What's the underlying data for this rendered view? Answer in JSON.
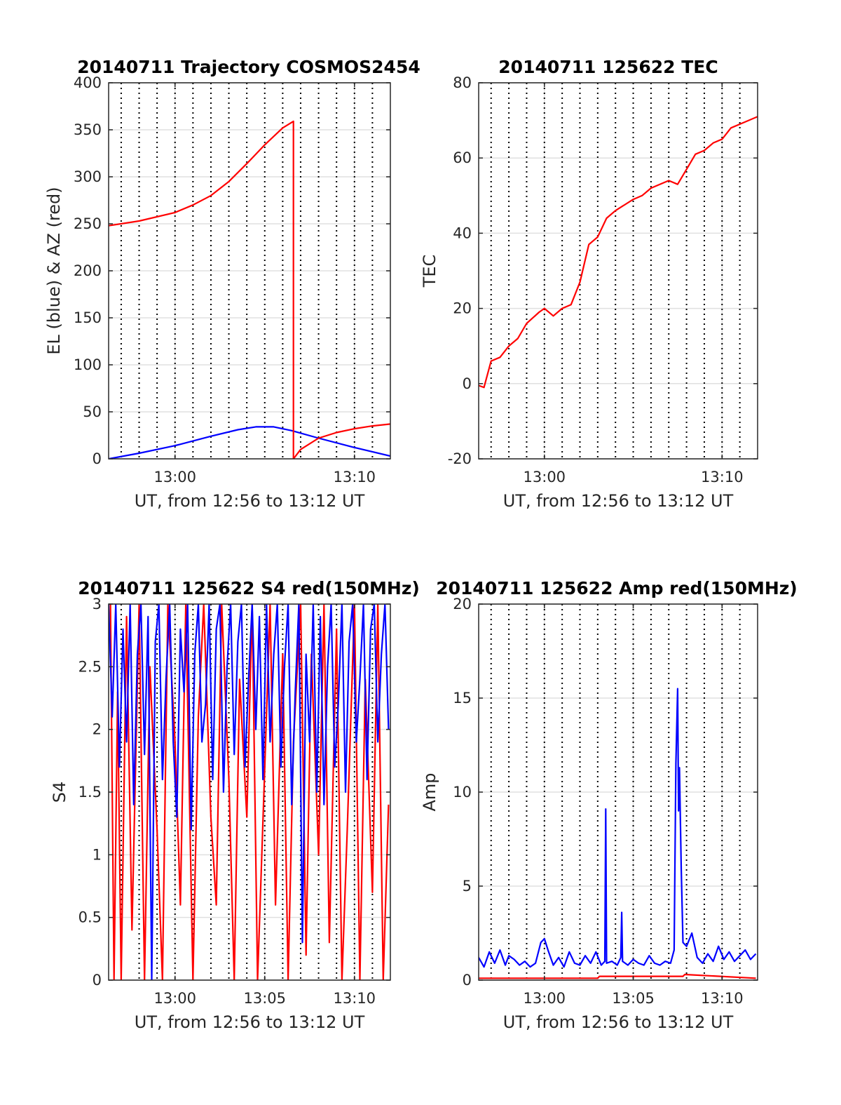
{
  "figure": {
    "background": "#ffffff"
  },
  "chart_data": [
    {
      "type": "line",
      "title": "20140711 Trajectory COSMOS2454",
      "xlabel": "UT, from 12:56 to 13:12 UT",
      "ylabel": "EL (blue) & AZ (red)",
      "xlim_minutes": [
        776.3,
        792.0
      ],
      "xticks": [
        {
          "label": "13:00",
          "value": 780
        },
        {
          "label": "13:10",
          "value": 790
        }
      ],
      "ylim": [
        0,
        400
      ],
      "yticks": [
        "0",
        "50",
        "100",
        "150",
        "200",
        "250",
        "300",
        "350",
        "400"
      ],
      "grid": true,
      "vertical_dotted_lines_minutes": [
        777.0,
        778.0,
        779.0,
        780.0,
        781.0,
        782.0,
        783.0,
        784.0,
        785.0,
        786.0,
        787.0,
        788.0,
        789.0,
        790.0,
        791.0
      ],
      "series": [
        {
          "color": "#0000ff",
          "x": [
            776.3,
            778.0,
            780.0,
            782.0,
            783.5,
            784.5,
            785.5,
            786.5,
            788.0,
            790.0,
            792.0
          ],
          "y": [
            0,
            6,
            14,
            24,
            31,
            34,
            34,
            30,
            22,
            12,
            3
          ]
        },
        {
          "color": "#ff0000",
          "x": [
            776.3,
            778.0,
            780.0,
            781.0,
            782.0,
            783.0,
            784.0,
            785.0,
            786.0,
            786.6,
            786.6,
            787.0,
            788.0,
            789.0,
            790.0,
            791.0,
            792.0
          ],
          "y": [
            248,
            253,
            262,
            270,
            280,
            295,
            314,
            334,
            352,
            359,
            0,
            10,
            22,
            28,
            32,
            35,
            37
          ]
        }
      ]
    },
    {
      "type": "line",
      "title": "20140711 125622 TEC",
      "xlabel": "UT, from 12:56 to 13:12 UT",
      "ylabel": "TEC",
      "xlim_minutes": [
        776.3,
        792.0
      ],
      "xticks": [
        {
          "label": "13:00",
          "value": 780
        },
        {
          "label": "13:10",
          "value": 790
        }
      ],
      "ylim": [
        -20,
        80
      ],
      "yticks": [
        "-20",
        "0",
        "20",
        "40",
        "60",
        "80"
      ],
      "grid": true,
      "vertical_dotted_lines_minutes": [
        777.0,
        778.0,
        779.0,
        780.0,
        781.0,
        782.0,
        783.0,
        784.0,
        785.0,
        786.0,
        787.0,
        788.0,
        789.0,
        790.0,
        791.0
      ],
      "series": [
        {
          "color": "#ff0000",
          "x": [
            776.3,
            776.6,
            777.0,
            777.5,
            778.0,
            778.5,
            779.0,
            779.7,
            780.0,
            780.5,
            781.0,
            781.5,
            782.0,
            782.5,
            783.0,
            783.5,
            784.0,
            785.0,
            785.5,
            786.0,
            787.0,
            787.5,
            788.0,
            788.5,
            789.0,
            789.5,
            790.0,
            790.5,
            791.0,
            792.0
          ],
          "y": [
            -0.5,
            -1,
            6,
            7,
            10,
            12,
            16,
            19,
            20,
            18,
            20,
            21,
            27,
            37,
            39,
            44,
            46,
            49,
            50,
            52,
            54,
            53,
            57,
            61,
            62,
            64,
            65,
            68,
            69,
            71
          ]
        }
      ]
    },
    {
      "type": "line",
      "title": "20140711 125622 S4 red(150MHz)",
      "xlabel": "UT, from 12:56 to 13:12 UT",
      "ylabel": "S4",
      "xlim_minutes": [
        776.3,
        792.0
      ],
      "xticks": [
        {
          "label": "13:00",
          "value": 780
        },
        {
          "label": "13:05",
          "value": 785
        },
        {
          "label": "13:10",
          "value": 790
        }
      ],
      "ylim": [
        0,
        3
      ],
      "yticks": [
        "0",
        "0.5",
        "1",
        "1.5",
        "2",
        "2.5",
        "3"
      ],
      "grid": true,
      "vertical_dotted_lines_minutes": [
        777.0,
        778.0,
        779.0,
        780.0,
        781.0,
        782.0,
        783.0,
        784.0,
        785.0,
        786.0,
        787.0,
        788.0,
        789.0,
        790.0,
        791.0
      ],
      "series": [
        {
          "color": "#ff0000",
          "x": [
            776.4,
            776.6,
            776.8,
            777.0,
            777.3,
            777.6,
            778.0,
            778.3,
            778.6,
            779.0,
            779.3,
            779.6,
            780.0,
            780.3,
            780.6,
            781.0,
            781.3,
            781.6,
            782.0,
            782.3,
            782.6,
            783.0,
            783.3,
            783.6,
            784.0,
            784.3,
            784.6,
            785.0,
            785.3,
            785.6,
            786.0,
            786.3,
            786.6,
            787.0,
            787.3,
            787.6,
            788.0,
            788.3,
            788.6,
            789.0,
            789.3,
            789.6,
            790.0,
            790.3,
            790.6,
            791.0,
            791.3,
            791.6,
            791.9
          ],
          "y": [
            3,
            0,
            2.3,
            0,
            2.9,
            0.4,
            3,
            0,
            2.5,
            1.2,
            0,
            3,
            1.9,
            0.6,
            3,
            0,
            2.1,
            3,
            1.3,
            0.6,
            3,
            1.6,
            0,
            2.4,
            1.3,
            3,
            0,
            1.7,
            3,
            0.6,
            2.6,
            0,
            1.9,
            3,
            0.2,
            2.6,
            1.0,
            3,
            0.3,
            2.8,
            0,
            1.2,
            3,
            0,
            2.4,
            0.7,
            3,
            0,
            1.4
          ]
        },
        {
          "color": "#0000ff",
          "x": [
            776.3,
            776.5,
            776.7,
            776.9,
            777.1,
            777.3,
            777.5,
            777.7,
            777.9,
            778.1,
            778.3,
            778.5,
            778.7,
            778.9,
            779.1,
            779.3,
            779.5,
            779.7,
            779.9,
            780.1,
            780.3,
            780.5,
            780.7,
            780.9,
            781.1,
            781.3,
            781.5,
            781.7,
            781.9,
            782.1,
            782.3,
            782.5,
            782.7,
            782.9,
            783.1,
            783.3,
            783.5,
            783.7,
            783.9,
            784.1,
            784.3,
            784.5,
            784.7,
            784.9,
            785.1,
            785.3,
            785.5,
            785.7,
            785.9,
            786.1,
            786.3,
            786.5,
            786.7,
            786.9,
            787.1,
            787.3,
            787.5,
            787.7,
            787.9,
            788.1,
            788.3,
            788.5,
            788.7,
            788.9,
            789.1,
            789.3,
            789.5,
            789.7,
            789.9,
            790.1,
            790.3,
            790.5,
            790.7,
            790.9,
            791.1,
            791.3,
            791.5,
            791.7,
            791.9
          ],
          "y": [
            3,
            2.1,
            3,
            1.7,
            2.8,
            1.9,
            3,
            1.4,
            2.6,
            3,
            1.8,
            2.9,
            0,
            2.7,
            3,
            1.6,
            2.4,
            3,
            1.9,
            1.3,
            2.8,
            2.3,
            3,
            1.2,
            2.6,
            3,
            1.9,
            2.2,
            3,
            1.6,
            2.8,
            3,
            1.5,
            2.5,
            3,
            1.8,
            2.7,
            3,
            1.7,
            2.4,
            3,
            2.0,
            2.9,
            1.6,
            3,
            1.9,
            2.6,
            3,
            1.7,
            2.5,
            3,
            1.4,
            2.3,
            3,
            0.3,
            2.6,
            1.9,
            3,
            1.5,
            2.9,
            1.4,
            2.5,
            3,
            1.7,
            2.2,
            3,
            1.5,
            2.7,
            3,
            1.9,
            2.4,
            3,
            1.6,
            2.8,
            3,
            1.9,
            2.6,
            3,
            2.0
          ]
        }
      ]
    },
    {
      "type": "line",
      "title": "20140711 125622 Amp red(150MHz)",
      "xlabel": "UT, from 12:56 to 13:12 UT",
      "ylabel": "Amp",
      "xlim_minutes": [
        776.3,
        792.0
      ],
      "xticks": [
        {
          "label": "13:00",
          "value": 780
        },
        {
          "label": "13:05",
          "value": 785
        },
        {
          "label": "13:10",
          "value": 790
        }
      ],
      "ylim": [
        0,
        20
      ],
      "yticks": [
        "0",
        "5",
        "10",
        "15",
        "20"
      ],
      "grid": true,
      "vertical_dotted_lines_minutes": [
        777.0,
        778.0,
        779.0,
        780.0,
        781.0,
        782.0,
        783.0,
        784.0,
        785.0,
        786.0,
        787.0,
        788.0,
        789.0,
        790.0,
        791.0
      ],
      "series": [
        {
          "color": "#ff0000",
          "x": [
            776.3,
            783.0,
            783.1,
            787.8,
            787.9,
            791.9
          ],
          "y": [
            0.1,
            0.1,
            0.2,
            0.2,
            0.3,
            0.1
          ]
        },
        {
          "color": "#0000ff",
          "x": [
            776.3,
            776.6,
            776.9,
            777.2,
            777.5,
            777.8,
            778.0,
            778.3,
            778.6,
            778.9,
            779.2,
            779.5,
            779.8,
            780.0,
            780.2,
            780.5,
            780.8,
            781.1,
            781.4,
            781.7,
            782.0,
            782.3,
            782.6,
            782.9,
            783.2,
            783.4,
            783.45,
            783.5,
            783.8,
            784.1,
            784.3,
            784.35,
            784.4,
            784.7,
            785.0,
            785.3,
            785.6,
            785.9,
            786.2,
            786.5,
            786.8,
            787.1,
            787.3,
            787.4,
            787.5,
            787.55,
            787.6,
            787.7,
            787.8,
            788.0,
            788.3,
            788.6,
            788.9,
            789.2,
            789.5,
            789.8,
            790.1,
            790.4,
            790.7,
            791.0,
            791.3,
            791.6,
            791.9
          ],
          "y": [
            1.2,
            0.7,
            1.5,
            0.9,
            1.6,
            0.8,
            1.3,
            1.1,
            0.8,
            1.0,
            0.7,
            0.9,
            2.0,
            2.2,
            1.6,
            0.8,
            1.2,
            0.7,
            1.5,
            0.9,
            0.8,
            1.3,
            0.9,
            1.5,
            0.8,
            1.0,
            9.1,
            0.9,
            1.0,
            0.8,
            1.2,
            3.6,
            1.0,
            0.8,
            1.1,
            0.9,
            0.8,
            1.3,
            0.9,
            0.8,
            1.0,
            0.9,
            1.6,
            11.5,
            15.5,
            9.0,
            11.3,
            6.0,
            2.0,
            1.8,
            2.5,
            1.2,
            0.9,
            1.4,
            1.0,
            1.8,
            1.1,
            1.5,
            1.0,
            1.3,
            1.6,
            1.1,
            1.4
          ]
        }
      ]
    }
  ]
}
